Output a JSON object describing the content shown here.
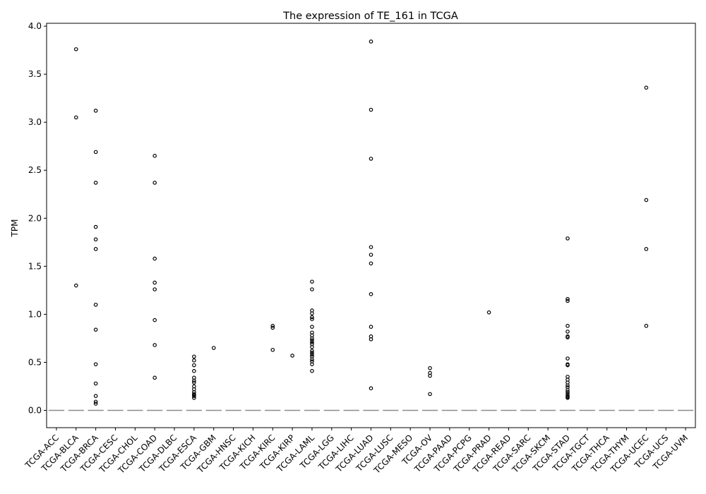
{
  "chart_data": {
    "type": "box",
    "title": "The expression of TE_161 in TCGA",
    "xlabel": "",
    "ylabel": "TPM",
    "ylim": [
      -0.18,
      4.03
    ],
    "yticks": [
      "0.0",
      "0.5",
      "1.0",
      "1.5",
      "2.0",
      "2.5",
      "3.0",
      "3.5",
      "4.0"
    ],
    "ytick_values": [
      0,
      0.5,
      1.0,
      1.5,
      2.0,
      2.5,
      3.0,
      3.5,
      4.0
    ],
    "grid": false,
    "median": 0,
    "colors": {
      "median": "#8c8c8c",
      "outlier": "#000000",
      "axis": "#000000"
    },
    "categories": [
      "TCGA-ACC",
      "TCGA-BLCA",
      "TCGA-BRCA",
      "TCGA-CESC",
      "TCGA-CHOL",
      "TCGA-COAD",
      "TCGA-DLBC",
      "TCGA-ESCA",
      "TCGA-GBM",
      "TCGA-HNSC",
      "TCGA-KICH",
      "TCGA-KIRC",
      "TCGA-KIRP",
      "TCGA-LAML",
      "TCGA-LGG",
      "TCGA-LIHC",
      "TCGA-LUAD",
      "TCGA-LUSC",
      "TCGA-MESO",
      "TCGA-OV",
      "TCGA-PAAD",
      "TCGA-PCPG",
      "TCGA-PRAD",
      "TCGA-READ",
      "TCGA-SARC",
      "TCGA-SKCM",
      "TCGA-STAD",
      "TCGA-TGCT",
      "TCGA-THCA",
      "TCGA-THYM",
      "TCGA-UCEC",
      "TCGA-UCS",
      "TCGA-UVM"
    ],
    "outliers": [
      [],
      [
        3.76,
        3.05,
        1.3
      ],
      [
        3.12,
        2.69,
        2.37,
        1.91,
        1.78,
        1.68,
        1.1,
        0.84,
        0.48,
        0.28,
        0.15,
        0.09,
        0.07
      ],
      [],
      [],
      [
        2.65,
        2.37,
        1.58,
        1.33,
        1.26,
        0.94,
        0.68,
        0.34
      ],
      [],
      [
        0.56,
        0.52,
        0.47,
        0.41,
        0.34,
        0.31,
        0.29,
        0.25,
        0.22,
        0.19,
        0.17,
        0.16,
        0.15,
        0.13
      ],
      [
        0.65
      ],
      [],
      [],
      [
        0.88,
        0.86,
        0.63
      ],
      [
        0.57
      ],
      [
        1.34,
        1.26,
        1.04,
        1.01,
        0.97,
        0.95,
        0.87,
        0.81,
        0.78,
        0.75,
        0.73,
        0.71,
        0.69,
        0.66,
        0.62,
        0.6,
        0.58,
        0.56,
        0.53,
        0.51,
        0.48,
        0.41
      ],
      [],
      [],
      [
        3.84,
        3.13,
        2.62,
        1.7,
        1.62,
        1.53,
        1.21,
        0.87,
        0.77,
        0.74,
        0.23
      ],
      [],
      [],
      [
        0.44,
        0.39,
        0.36,
        0.17
      ],
      [],
      [],
      [
        1.02
      ],
      [],
      [],
      [],
      [
        1.79,
        1.16,
        1.14,
        0.88,
        0.82,
        0.77,
        0.76,
        0.54,
        0.48,
        0.47,
        0.35,
        0.32,
        0.29,
        0.26,
        0.24,
        0.21,
        0.19,
        0.17,
        0.15,
        0.14,
        0.13
      ],
      [],
      [],
      [],
      [
        3.36,
        2.19,
        1.68,
        0.88
      ],
      [],
      []
    ]
  }
}
